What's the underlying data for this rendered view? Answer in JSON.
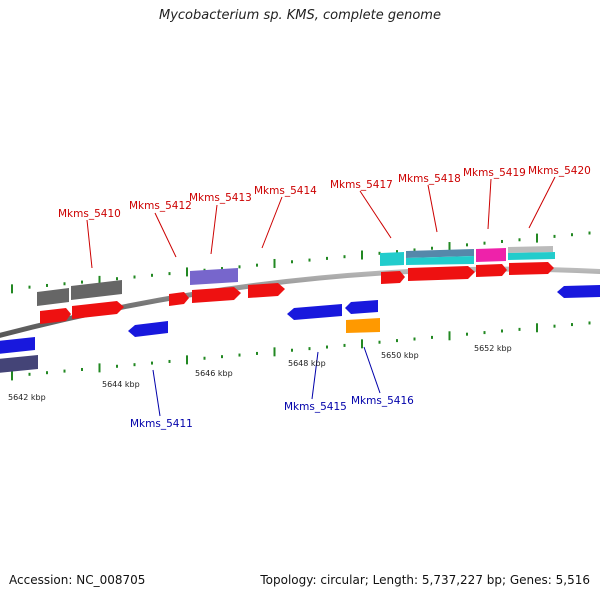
{
  "title": "Mycobacterium sp. KMS, complete genome",
  "footer": {
    "accession": "Accession: NC_008705",
    "summary": "Topology: circular; Length: 5,737,227 bp; Genes: 5,516"
  },
  "colors": {
    "forward_cds": "#ee1111",
    "reverse_cds": "#1818dd",
    "gray_feature": "#666666",
    "purple_feature": "#7766cc",
    "dark_purple_feature": "#444477",
    "cyan_feature": "#22cccc",
    "steel_feature": "#5588aa",
    "magenta_feature": "#ee22aa",
    "light_gray_feature": "#bbbbbb",
    "orange_feature": "#ff9900",
    "backbone": "#888888",
    "tick": "#228822",
    "top_label": "#cc0000",
    "bottom_label": "#0000aa"
  },
  "scale_labels": [
    "5642 kbp",
    "5644 kbp",
    "5646 kbp",
    "5648 kbp",
    "5650 kbp",
    "5652 kbp"
  ],
  "top_labels": [
    "Mkms_5410",
    "Mkms_5412",
    "Mkms_5413",
    "Mkms_5414",
    "Mkms_5417",
    "Mkms_5418",
    "Mkms_5419",
    "Mkms_5420"
  ],
  "bottom_labels": [
    "Mkms_5411",
    "Mkms_5415",
    "Mkms_5416"
  ]
}
